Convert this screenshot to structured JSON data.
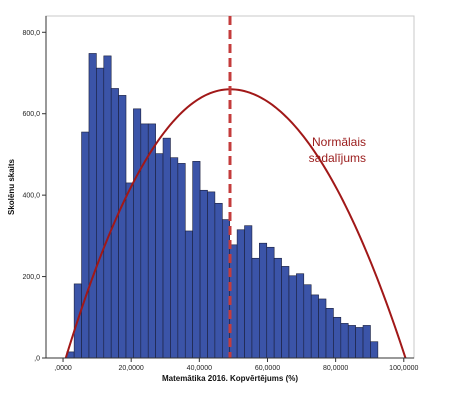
{
  "chart_data": {
    "type": "histogram",
    "xlabel": "Matemātika 2016. Kopvērtējums (%)",
    "ylabel": "Skolēnu skaits",
    "xlim": [
      -5,
      103
    ],
    "ylim": [
      0,
      840
    ],
    "x_ticks": [
      0,
      20,
      40,
      60,
      80,
      100
    ],
    "x_tick_labels": [
      ",0000",
      "20,0000",
      "40,0000",
      "60,0000",
      "80,0000",
      "100,0000"
    ],
    "y_ticks": [
      0,
      200,
      400,
      600,
      800
    ],
    "y_tick_labels": [
      ",0",
      "200,0",
      "400,0",
      "600,0",
      "800,0"
    ],
    "bin_width": 2.174,
    "bin_start": 1.087,
    "values": [
      15,
      182,
      555,
      748,
      712,
      742,
      662,
      645,
      430,
      612,
      575,
      575,
      502,
      540,
      492,
      478,
      312,
      483,
      412,
      408,
      380,
      340,
      278,
      315,
      325,
      245,
      282,
      272,
      245,
      225,
      202,
      207,
      180,
      155,
      145,
      122,
      100,
      85,
      80,
      75,
      80,
      40
    ],
    "bar_color": "#3b54a8",
    "bar_edge_color": "#1a1f3c",
    "normal_curve": {
      "label_lines": [
        "Normālais",
        "sadalījums"
      ],
      "peak_x": 49,
      "peak_y": 660,
      "root_left_x": 0.8,
      "root_right_x": 100.5,
      "color": "#a11818"
    },
    "mean_line": {
      "x": 49,
      "color": "#c43c3c",
      "style": "dashed"
    }
  }
}
